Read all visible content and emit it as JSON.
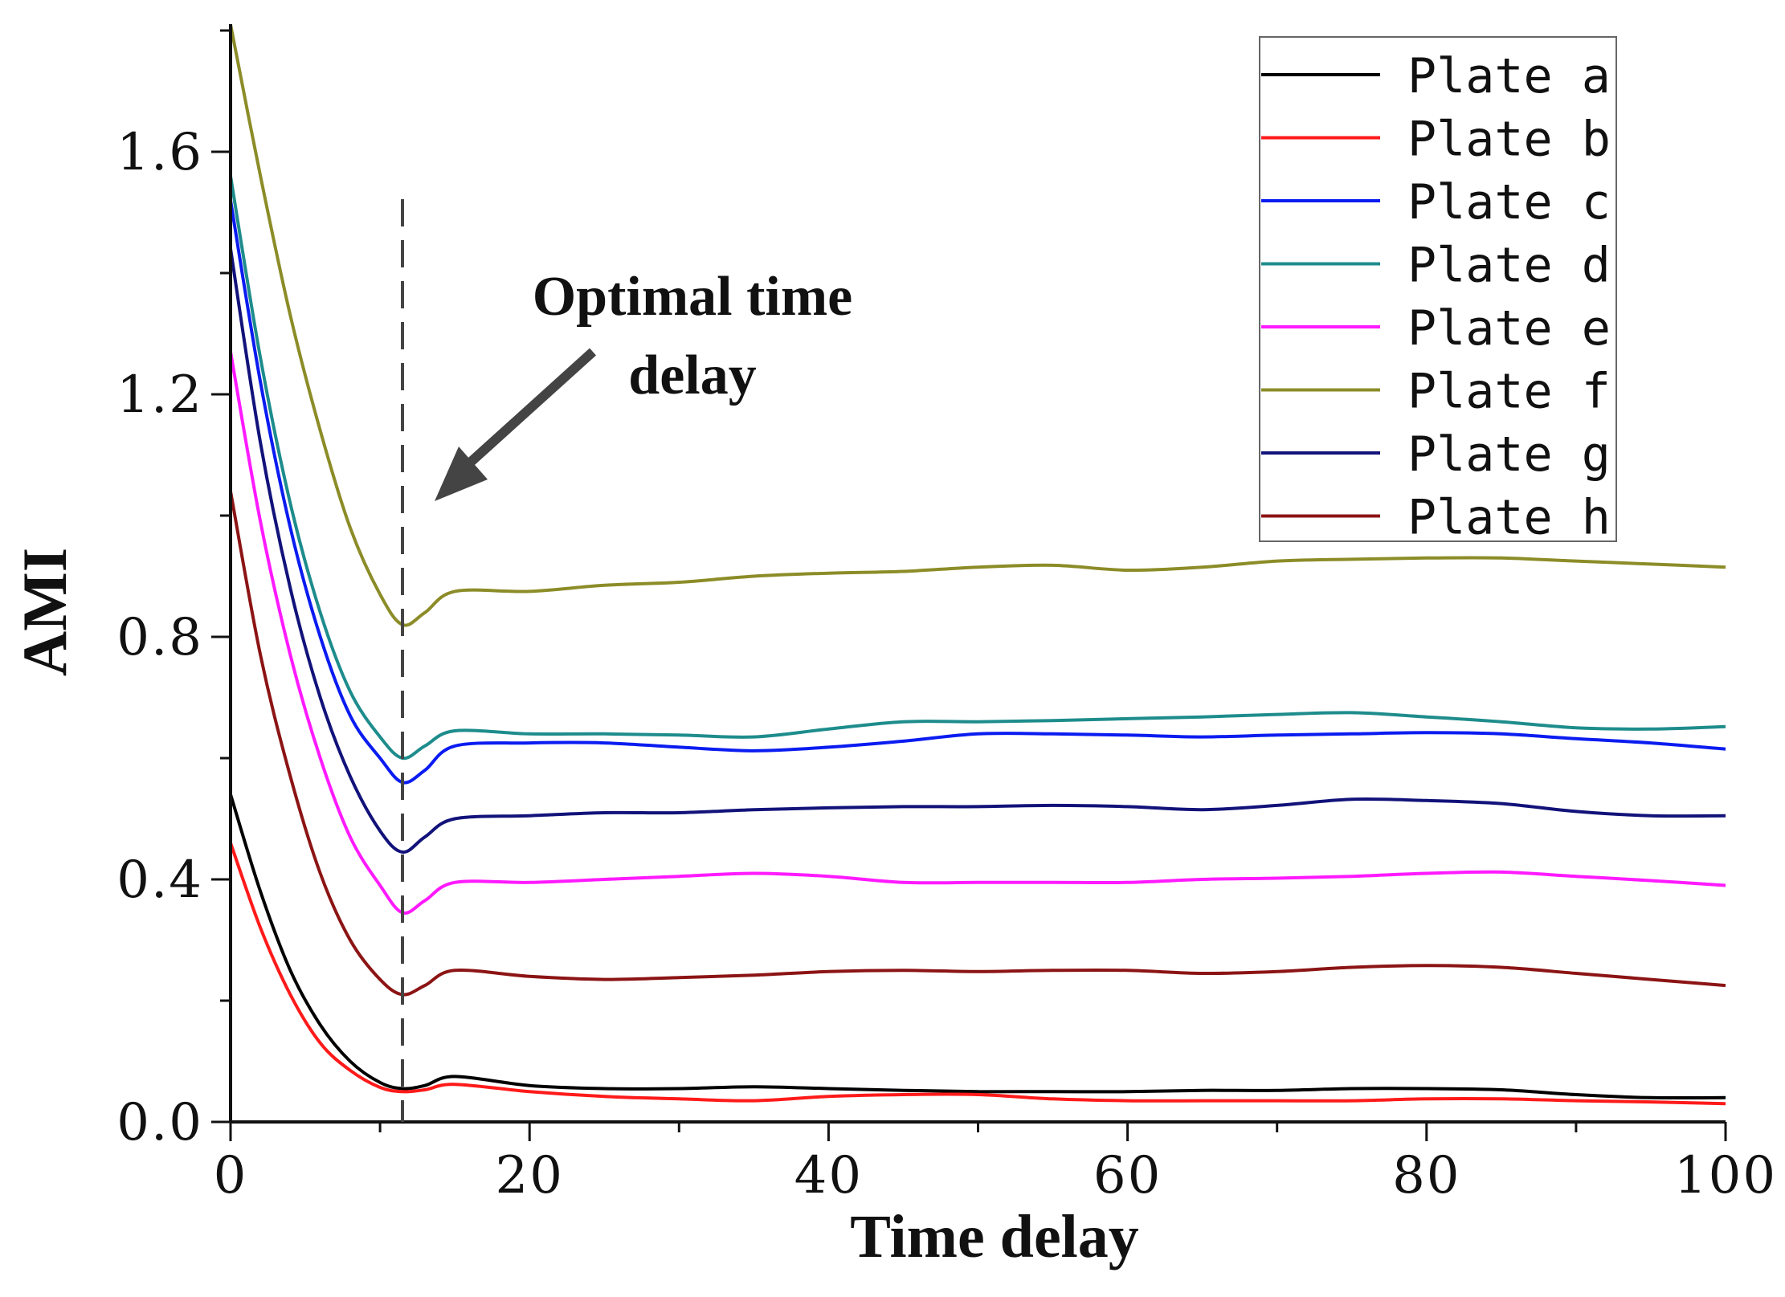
{
  "chart_data": {
    "type": "line",
    "xlabel": "Time delay",
    "ylabel": "AMI",
    "xlim": [
      0,
      100
    ],
    "ylim": [
      0,
      1.8
    ],
    "xticks": [
      0,
      20,
      40,
      60,
      80,
      100
    ],
    "xtick_labels": [
      "0",
      "20",
      "40",
      "60",
      "80",
      "100"
    ],
    "yticks": [
      0,
      0.4,
      0.8,
      1.2,
      1.6
    ],
    "ytick_labels": [
      "0.0",
      "0.4",
      "0.8",
      "1.2",
      "1.6"
    ],
    "legend_position": "top-right",
    "annotation": {
      "lines": [
        "Optimal time",
        "delay"
      ],
      "marker_x": 11.5
    },
    "x": [
      0,
      2,
      4,
      6,
      8,
      10,
      11.5,
      13,
      15,
      20,
      25,
      30,
      35,
      40,
      45,
      50,
      55,
      60,
      65,
      70,
      75,
      80,
      85,
      90,
      95,
      100
    ],
    "series": [
      {
        "name": "Plate a",
        "color": "#000000",
        "values": [
          0.54,
          0.38,
          0.25,
          0.16,
          0.1,
          0.065,
          0.055,
          0.06,
          0.075,
          0.06,
          0.055,
          0.055,
          0.058,
          0.055,
          0.052,
          0.05,
          0.05,
          0.05,
          0.052,
          0.052,
          0.055,
          0.055,
          0.053,
          0.045,
          0.04,
          0.04
        ]
      },
      {
        "name": "Plate b",
        "color": "#ff1a1a",
        "values": [
          0.46,
          0.32,
          0.21,
          0.13,
          0.085,
          0.057,
          0.05,
          0.053,
          0.062,
          0.05,
          0.042,
          0.038,
          0.035,
          0.042,
          0.045,
          0.045,
          0.038,
          0.035,
          0.035,
          0.035,
          0.035,
          0.038,
          0.038,
          0.035,
          0.033,
          0.03
        ]
      },
      {
        "name": "Plate c",
        "color": "#0a1cf0",
        "values": [
          1.52,
          1.22,
          0.98,
          0.8,
          0.67,
          0.6,
          0.56,
          0.58,
          0.62,
          0.625,
          0.625,
          0.618,
          0.612,
          0.618,
          0.628,
          0.64,
          0.64,
          0.638,
          0.635,
          0.638,
          0.64,
          0.642,
          0.64,
          0.632,
          0.625,
          0.615
        ]
      },
      {
        "name": "Plate d",
        "color": "#1e8c8c",
        "values": [
          1.56,
          1.26,
          1.02,
          0.84,
          0.71,
          0.635,
          0.6,
          0.62,
          0.645,
          0.64,
          0.64,
          0.638,
          0.635,
          0.648,
          0.66,
          0.66,
          0.662,
          0.665,
          0.668,
          0.672,
          0.675,
          0.668,
          0.66,
          0.65,
          0.648,
          0.652
        ]
      },
      {
        "name": "Plate e",
        "color": "#ff1aff",
        "values": [
          1.27,
          0.99,
          0.77,
          0.6,
          0.47,
          0.39,
          0.345,
          0.365,
          0.395,
          0.395,
          0.4,
          0.405,
          0.41,
          0.405,
          0.395,
          0.395,
          0.395,
          0.395,
          0.4,
          0.402,
          0.405,
          0.41,
          0.412,
          0.405,
          0.398,
          0.39
        ]
      },
      {
        "name": "Plate f",
        "color": "#8c8c28",
        "values": [
          1.81,
          1.56,
          1.33,
          1.14,
          0.98,
          0.87,
          0.82,
          0.84,
          0.875,
          0.875,
          0.885,
          0.89,
          0.9,
          0.905,
          0.908,
          0.915,
          0.918,
          0.91,
          0.915,
          0.925,
          0.928,
          0.93,
          0.93,
          0.925,
          0.92,
          0.915
        ]
      },
      {
        "name": "Plate g",
        "color": "#12127a",
        "values": [
          1.44,
          1.12,
          0.88,
          0.7,
          0.57,
          0.48,
          0.445,
          0.47,
          0.5,
          0.505,
          0.51,
          0.51,
          0.515,
          0.518,
          0.52,
          0.52,
          0.522,
          0.52,
          0.515,
          0.522,
          0.532,
          0.53,
          0.525,
          0.512,
          0.505,
          0.505
        ]
      },
      {
        "name": "Plate h",
        "color": "#8c1414",
        "values": [
          1.04,
          0.77,
          0.57,
          0.41,
          0.3,
          0.235,
          0.21,
          0.225,
          0.25,
          0.24,
          0.235,
          0.238,
          0.242,
          0.248,
          0.25,
          0.248,
          0.25,
          0.25,
          0.245,
          0.248,
          0.255,
          0.258,
          0.255,
          0.245,
          0.235,
          0.225
        ]
      }
    ]
  }
}
